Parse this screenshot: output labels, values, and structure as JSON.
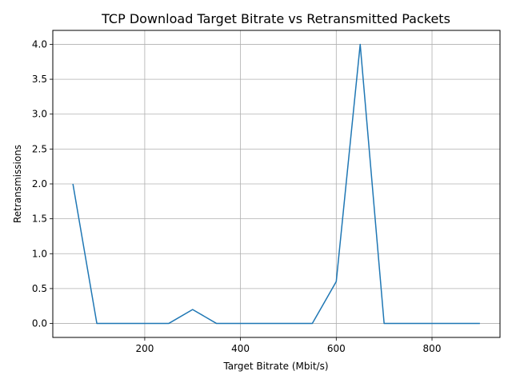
{
  "chart_data": {
    "type": "line",
    "title": "TCP Download Target Bitrate vs Retransmitted Packets",
    "xlabel": "Target Bitrate (Mbit/s)",
    "ylabel": "Retransmissions",
    "xlim": [
      8,
      942
    ],
    "ylim": [
      -0.2,
      4.2
    ],
    "grid": true,
    "xticks": [
      200,
      400,
      600,
      800
    ],
    "xtick_labels": [
      "200",
      "400",
      "600",
      "800"
    ],
    "yticks": [
      0.0,
      0.5,
      1.0,
      1.5,
      2.0,
      2.5,
      3.0,
      3.5,
      4.0
    ],
    "ytick_labels": [
      "0.0",
      "0.5",
      "1.0",
      "1.5",
      "2.0",
      "2.5",
      "3.0",
      "3.5",
      "4.0"
    ],
    "series": [
      {
        "color": "#1f77b4",
        "x": [
          50,
          100,
          150,
          200,
          250,
          300,
          350,
          400,
          450,
          500,
          550,
          600,
          650,
          700,
          750,
          800,
          850,
          900
        ],
        "y": [
          2.0,
          0.0,
          0.0,
          0.0,
          0.0,
          0.2,
          0.0,
          0.0,
          0.0,
          0.0,
          0.0,
          0.6,
          4.0,
          0.0,
          0.0,
          0.0,
          0.0,
          0.0
        ]
      }
    ]
  }
}
